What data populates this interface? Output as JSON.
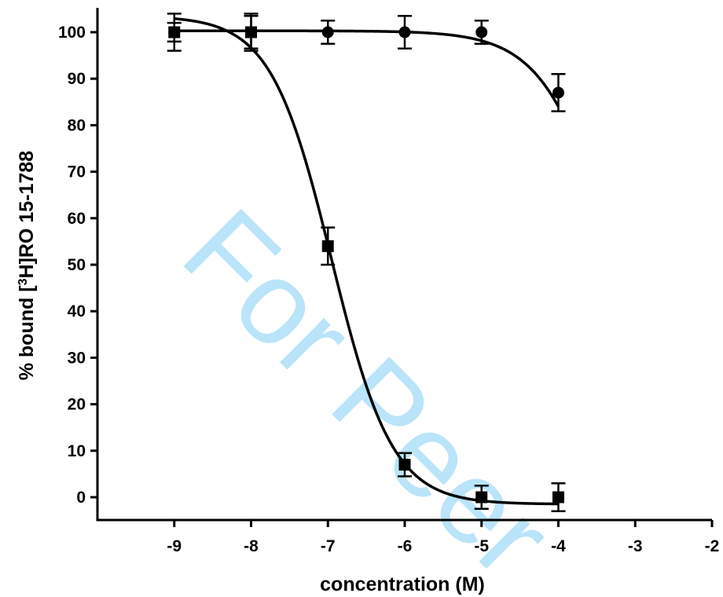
{
  "watermark": "For Peer",
  "chart_data": {
    "type": "scatter",
    "xlabel": "concentration (M)",
    "ylabel_prefix": "% bound [",
    "ylabel_sup": "3",
    "ylabel_suffix": "H]RO 15-1788",
    "xlim": [
      -10,
      -2
    ],
    "ylim": [
      -5,
      105
    ],
    "xticks": [
      -9,
      -8,
      -7,
      -6,
      -5,
      -4,
      -3,
      -2
    ],
    "yticks": [
      0,
      10,
      20,
      30,
      40,
      50,
      60,
      70,
      80,
      90,
      100
    ],
    "grid": false,
    "series": [
      {
        "marker": "square",
        "x": [
          -9,
          -8,
          -7,
          -6,
          -5,
          -4
        ],
        "y": [
          100,
          100,
          54,
          7,
          0,
          0
        ],
        "err": [
          4,
          4,
          4,
          2.5,
          2.5,
          3
        ]
      },
      {
        "marker": "circle",
        "x": [
          -9,
          -8,
          -7,
          -6,
          -5,
          -4
        ],
        "y": [
          100,
          100,
          100,
          100,
          100,
          87
        ],
        "err": [
          2,
          3.5,
          2.5,
          3.5,
          2.5,
          4
        ]
      }
    ],
    "fit_curves": [
      {
        "series": 0,
        "top": 103.5,
        "bottom": -1.5,
        "logEC50": -6.95,
        "hill": -1.1,
        "x_range": [
          -9,
          -4
        ]
      },
      {
        "series": 1,
        "top": 100.3,
        "bottom": 0,
        "logEC50": -3.25,
        "hill": -0.95,
        "x_range": [
          -9,
          -4
        ]
      }
    ],
    "colors": {
      "data": "#000000",
      "watermark": "#39b5f0"
    }
  }
}
